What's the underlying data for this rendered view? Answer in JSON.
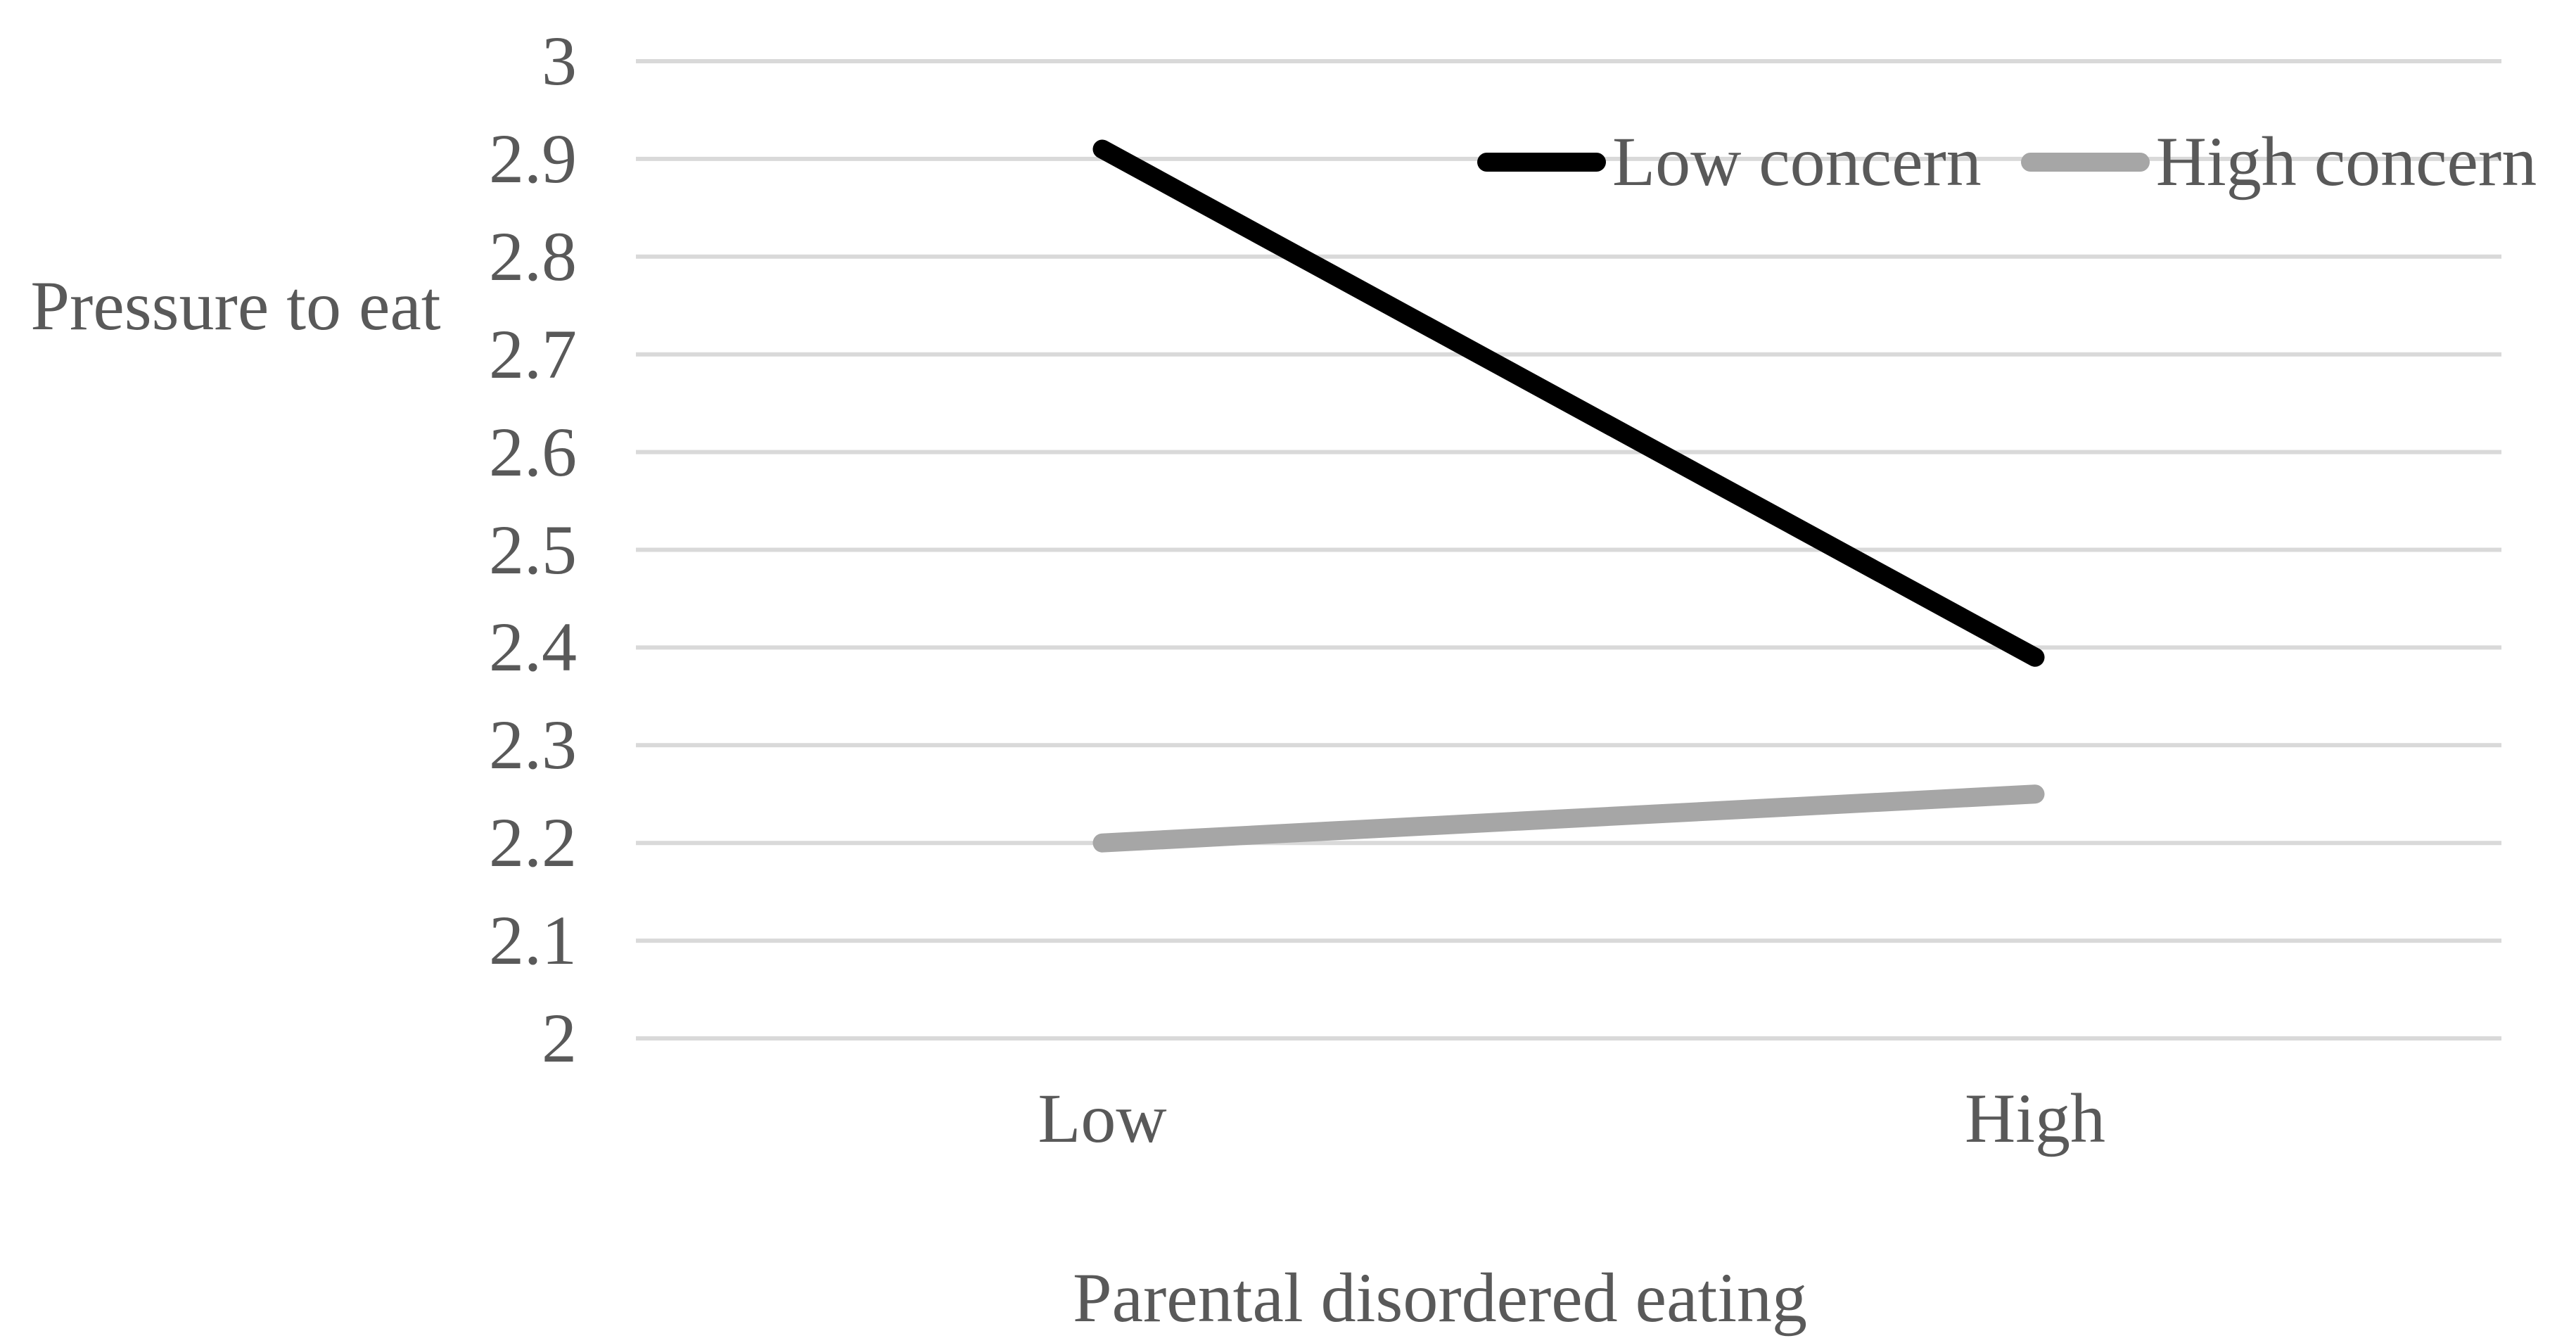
{
  "chart_data": {
    "type": "line",
    "title": "",
    "xlabel": "Parental disordered eating",
    "ylabel": "Pressure to eat",
    "categories": [
      "Low",
      "High"
    ],
    "series": [
      {
        "name": "Low concern",
        "values": [
          2.91,
          2.39
        ],
        "color": "#000000"
      },
      {
        "name": "High concern",
        "values": [
          2.2,
          2.25
        ],
        "color": "#a6a6a6"
      }
    ],
    "ylim": [
      2.0,
      3.0
    ],
    "ytick_step": 0.1,
    "yticks": [
      "3",
      "2.9",
      "2.8",
      "2.7",
      "2.6",
      "2.5",
      "2.4",
      "2.3",
      "2.2",
      "2.1",
      "2"
    ],
    "grid": true,
    "legend_position": "inside-top-right",
    "colors": {
      "gridline": "#d9d9d9",
      "text": "#595959",
      "background": "#ffffff"
    }
  }
}
